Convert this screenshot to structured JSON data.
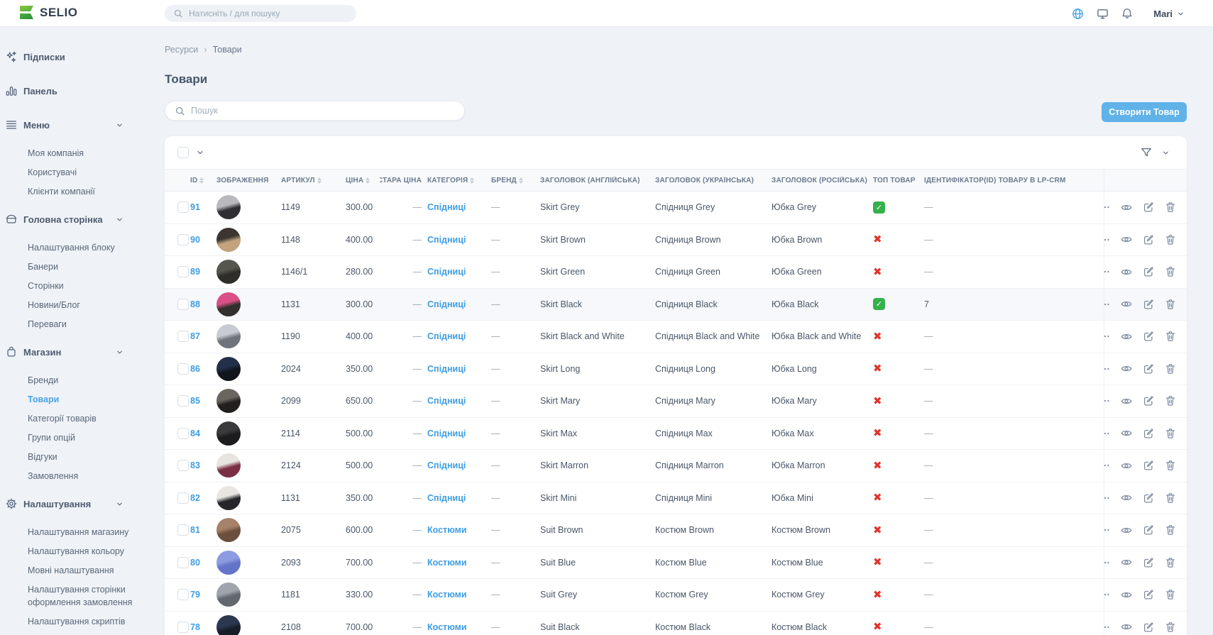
{
  "topbar": {
    "brand": "SELIO",
    "search_placeholder": "Натисніть / для пошуку",
    "user": "Mari",
    "icons": [
      "globe-icon",
      "monitor-icon",
      "bell-icon"
    ]
  },
  "sidebar": {
    "items": [
      {
        "key": "subscriptions",
        "icon": "sparkles-icon",
        "label": "Підписки"
      },
      {
        "key": "dashboard",
        "icon": "bar-chart-icon",
        "label": "Панель"
      },
      {
        "key": "menu",
        "icon": "menu-icon",
        "label": "Меню",
        "children": [
          {
            "key": "my-company",
            "label": "Моя компанія"
          },
          {
            "key": "users",
            "label": "Користувачі"
          },
          {
            "key": "company-clients",
            "label": "Клієнти компанії"
          }
        ]
      },
      {
        "key": "home-page",
        "icon": "box-icon",
        "label": "Головна сторінка",
        "children": [
          {
            "key": "block-settings",
            "label": "Налаштування блоку"
          },
          {
            "key": "banners",
            "label": "Банери"
          },
          {
            "key": "pages",
            "label": "Сторінки"
          },
          {
            "key": "news-blog",
            "label": "Новини/Блог"
          },
          {
            "key": "benefits",
            "label": "Переваги"
          }
        ]
      },
      {
        "key": "shop",
        "icon": "bag-icon",
        "label": "Магазин",
        "children": [
          {
            "key": "brands",
            "label": "Бренди"
          },
          {
            "key": "products",
            "label": "Товари",
            "active": true
          },
          {
            "key": "product-categories",
            "label": "Категорії товарів"
          },
          {
            "key": "option-groups",
            "label": "Групи опцій"
          },
          {
            "key": "reviews",
            "label": "Відгуки"
          },
          {
            "key": "orders",
            "label": "Замовлення"
          }
        ]
      },
      {
        "key": "settings",
        "icon": "gear-icon",
        "label": "Налаштування",
        "children": [
          {
            "key": "shop-settings",
            "label": "Налаштування магазину"
          },
          {
            "key": "color-settings",
            "label": "Налаштування кольору"
          },
          {
            "key": "language-settings",
            "label": "Мовні налаштування"
          },
          {
            "key": "checkout-page-settings",
            "label": "Налаштування сторінки оформлення замовлення"
          },
          {
            "key": "script-settings",
            "label": "Налаштування скриптів"
          }
        ]
      }
    ]
  },
  "breadcrumb": {
    "items": [
      "Ресурси",
      "Товари"
    ]
  },
  "page": {
    "title": "Товари",
    "search_placeholder": "Пошук",
    "create_button": "Створити Товар"
  },
  "table": {
    "columns": [
      {
        "label": "ID",
        "sortable": true
      },
      {
        "label": "ЗОБРАЖЕННЯ",
        "sortable": false
      },
      {
        "label": "АРТИКУЛ",
        "sortable": true
      },
      {
        "label": "ЦІНА",
        "sortable": true
      },
      {
        "label": "СТАРА ЦІНА",
        "sortable": false
      },
      {
        "label": "КАТЕГОРІЯ",
        "sortable": true
      },
      {
        "label": "БРЕНД",
        "sortable": true
      },
      {
        "label": "ЗАГОЛОВОК (АНГЛІЙСЬКА)",
        "sortable": false
      },
      {
        "label": "ЗАГОЛОВОК (УКРАЇНСЬКА)",
        "sortable": false
      },
      {
        "label": "ЗАГОЛОВОК (РОСІЙСЬКА)",
        "sortable": false
      },
      {
        "label": "ТОП ТОВАР",
        "sortable": false
      },
      {
        "label": "ІДЕНТИФІКАТОР(ID) ТОВАРУ В LP-CRM",
        "sortable": false
      }
    ],
    "rows": [
      {
        "id": "91",
        "sku": "1149",
        "price": "300.00",
        "old_price": "—",
        "category": "Спідниці",
        "brand": "—",
        "title_en": "Skirt Grey",
        "title_uk": "Спідниця Grey",
        "title_ru": "Юбка Grey",
        "top": true,
        "lpcrm": "—",
        "avatar": [
          "#b9b9bd",
          "#2f2f33"
        ]
      },
      {
        "id": "90",
        "sku": "1148",
        "price": "400.00",
        "old_price": "—",
        "category": "Спідниці",
        "brand": "—",
        "title_en": "Skirt Brown",
        "title_uk": "Спідниця Brown",
        "title_ru": "Юбка Brown",
        "top": false,
        "lpcrm": "—",
        "avatar": [
          "#3c3530",
          "#c2a37e"
        ]
      },
      {
        "id": "89",
        "sku": "1146/1",
        "price": "280.00",
        "old_price": "—",
        "category": "Спідниці",
        "brand": "—",
        "title_en": "Skirt Green",
        "title_uk": "Спідниця Green",
        "title_ru": "Юбка Green",
        "top": false,
        "lpcrm": "—",
        "avatar": [
          "#57564e",
          "#2e2d29"
        ]
      },
      {
        "id": "88",
        "sku": "1131",
        "price": "300.00",
        "old_price": "—",
        "category": "Спідниці",
        "brand": "—",
        "title_en": "Skirt Black",
        "title_uk": "Спідниця Black",
        "title_ru": "Юбка Black",
        "top": true,
        "lpcrm": "7",
        "avatar": [
          "#d94f86",
          "#31302e"
        ],
        "highlight": true
      },
      {
        "id": "87",
        "sku": "1190",
        "price": "400.00",
        "old_price": "—",
        "category": "Спідниці",
        "brand": "—",
        "title_en": "Skirt Black and White",
        "title_uk": "Спідниця Black and White",
        "title_ru": "Юбка Black and White",
        "top": false,
        "lpcrm": "—",
        "avatar": [
          "#c8cbd1",
          "#6f747c"
        ]
      },
      {
        "id": "86",
        "sku": "2024",
        "price": "350.00",
        "old_price": "—",
        "category": "Спідниці",
        "brand": "—",
        "title_en": "Skirt Long",
        "title_uk": "Спідниця Long",
        "title_ru": "Юбка Long",
        "top": false,
        "lpcrm": "—",
        "avatar": [
          "#23304a",
          "#11151c"
        ]
      },
      {
        "id": "85",
        "sku": "2099",
        "price": "650.00",
        "old_price": "—",
        "category": "Спідниці",
        "brand": "—",
        "title_en": "Skirt Mary",
        "title_uk": "Спідниця Mary",
        "title_ru": "Юбка Mary",
        "top": false,
        "lpcrm": "—",
        "avatar": [
          "#6b6560",
          "#22201e"
        ]
      },
      {
        "id": "84",
        "sku": "2114",
        "price": "500.00",
        "old_price": "—",
        "category": "Спідниці",
        "brand": "—",
        "title_en": "Skirt Max",
        "title_uk": "Спідниця Max",
        "title_ru": "Юбка Max",
        "top": false,
        "lpcrm": "—",
        "avatar": [
          "#3a3a3c",
          "#1c1c1e"
        ]
      },
      {
        "id": "83",
        "sku": "2124",
        "price": "500.00",
        "old_price": "—",
        "category": "Спідниці",
        "brand": "—",
        "title_en": "Skirt Marron",
        "title_uk": "Спідниця Marron",
        "title_ru": "Юбка Marron",
        "top": false,
        "lpcrm": "—",
        "avatar": [
          "#e8e4df",
          "#7b2f45"
        ]
      },
      {
        "id": "82",
        "sku": "1131",
        "price": "350.00",
        "old_price": "—",
        "category": "Спідниці",
        "brand": "—",
        "title_en": "Skirt Mini",
        "title_uk": "Спідниця Mini",
        "title_ru": "Юбка Mini",
        "top": false,
        "lpcrm": "—",
        "avatar": [
          "#e9e6e2",
          "#26262a"
        ]
      },
      {
        "id": "81",
        "sku": "2075",
        "price": "600.00",
        "old_price": "—",
        "category": "Костюми",
        "brand": "—",
        "title_en": "Suit Brown",
        "title_uk": "Костюм Brown",
        "title_ru": "Костюм Brown",
        "top": false,
        "lpcrm": "—",
        "avatar": [
          "#a58268",
          "#6b4f3c"
        ]
      },
      {
        "id": "80",
        "sku": "2093",
        "price": "700.00",
        "old_price": "—",
        "category": "Костюми",
        "brand": "—",
        "title_en": "Suit Blue",
        "title_uk": "Костюм Blue",
        "title_ru": "Костюм Blue",
        "top": false,
        "lpcrm": "—",
        "avatar": [
          "#8d9ce2",
          "#6474c8"
        ]
      },
      {
        "id": "79",
        "sku": "1181",
        "price": "330.00",
        "old_price": "—",
        "category": "Костюми",
        "brand": "—",
        "title_en": "Suit Grey",
        "title_uk": "Костюм Grey",
        "title_ru": "Костюм Grey",
        "top": false,
        "lpcrm": "—",
        "avatar": [
          "#9fa4ad",
          "#63686f"
        ]
      },
      {
        "id": "78",
        "sku": "2108",
        "price": "700.00",
        "old_price": "—",
        "category": "Костюми",
        "brand": "—",
        "title_en": "Suit Black",
        "title_uk": "Костюм Black",
        "title_ru": "Костюм Black",
        "top": false,
        "lpcrm": "—",
        "avatar": [
          "#2c3850",
          "#171d29"
        ]
      }
    ]
  },
  "colors": {
    "accent_blue": "#60b2e8",
    "link_blue": "#3e9de5",
    "success_green": "#35b14c",
    "danger_red": "#e0342b",
    "logo_green_light": "#8cc63f",
    "logo_green_dark": "#33a23c",
    "page_bg": "#eff2f7"
  }
}
